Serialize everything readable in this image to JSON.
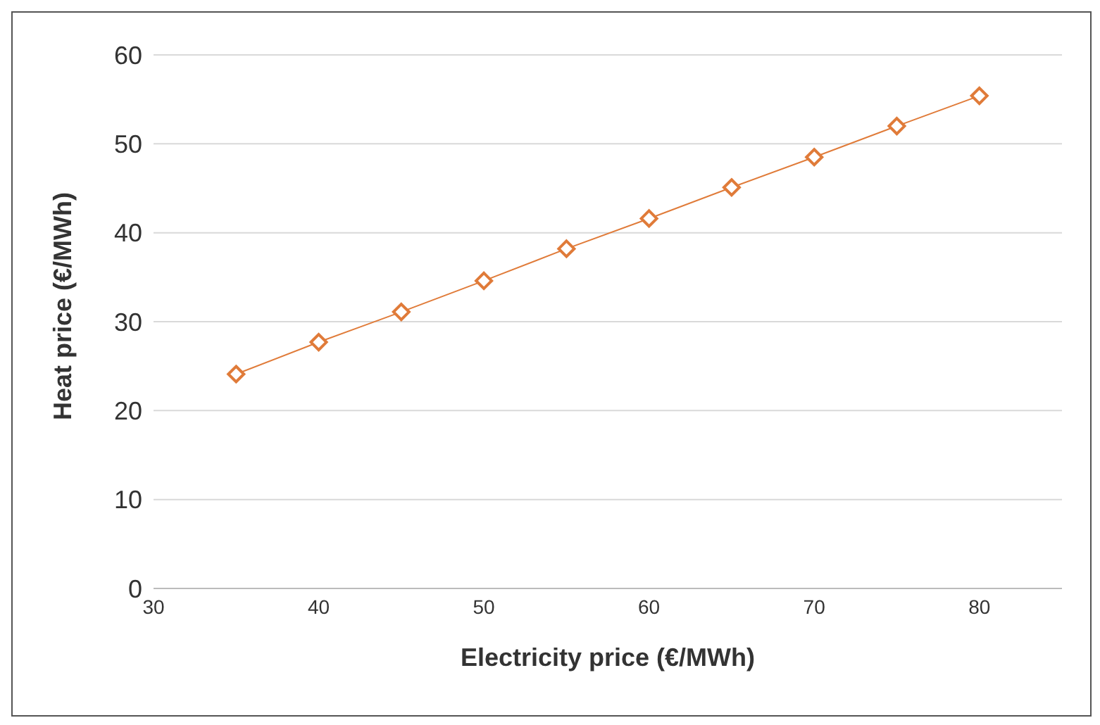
{
  "chart_data": {
    "type": "line",
    "xlabel": "Electricity price (€/MWh)",
    "ylabel": "Heat price (€/MWh)",
    "x": [
      35,
      40,
      45,
      50,
      55,
      60,
      65,
      70,
      75,
      80
    ],
    "series": [
      {
        "color": "#e07b39",
        "values": [
          24.1,
          27.7,
          31.1,
          34.6,
          38.2,
          41.6,
          45.1,
          48.5,
          52.0,
          55.4
        ]
      }
    ],
    "xlim": [
      30,
      85
    ],
    "xticks": [
      30,
      40,
      50,
      60,
      70,
      80
    ],
    "ylim": [
      0,
      60
    ],
    "yticks": [
      0,
      10,
      20,
      30,
      40,
      50,
      60
    ],
    "grid": "y",
    "marker": "diamond"
  }
}
